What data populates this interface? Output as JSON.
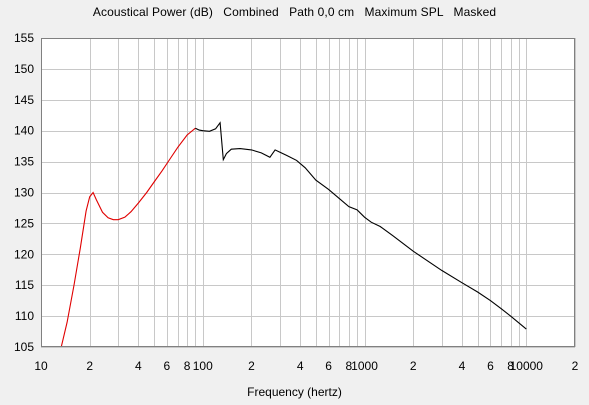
{
  "chart_data": {
    "type": "line",
    "title": "Acoustical Power (dB)   Combined   Path 0,0 cm   Maximum SPL   Masked",
    "xlabel": "Frequency (hertz)",
    "ylabel": "",
    "xscale": "log",
    "xlim": [
      10,
      20000
    ],
    "ylim": [
      105,
      155
    ],
    "yticks": [
      105,
      110,
      115,
      120,
      125,
      130,
      135,
      140,
      145,
      150,
      155
    ],
    "xtick_labels": [
      {
        "value": 10,
        "label": "10"
      },
      {
        "value": 20,
        "label": "2"
      },
      {
        "value": 40,
        "label": "4"
      },
      {
        "value": 60,
        "label": "6"
      },
      {
        "value": 80,
        "label": "8"
      },
      {
        "value": 100,
        "label": "100"
      },
      {
        "value": 200,
        "label": "2"
      },
      {
        "value": 400,
        "label": "4"
      },
      {
        "value": 600,
        "label": "6"
      },
      {
        "value": 800,
        "label": "8"
      },
      {
        "value": 1000,
        "label": "1000"
      },
      {
        "value": 2000,
        "label": "2"
      },
      {
        "value": 4000,
        "label": "4"
      },
      {
        "value": 6000,
        "label": "6"
      },
      {
        "value": 8000,
        "label": "8"
      },
      {
        "value": 10000,
        "label": "10000"
      },
      {
        "value": 20000,
        "label": "2"
      }
    ],
    "grid": true,
    "background": "#ffffff",
    "grid_color": "#c8c8c8",
    "series": [
      {
        "color": "#e00000",
        "x": [
          13.2,
          14.5,
          16,
          17.5,
          19,
          20,
          21,
          22,
          24,
          26,
          28,
          30,
          33,
          36,
          40,
          45,
          50,
          56,
          63,
          70,
          80,
          90
        ],
        "y": [
          104.5,
          109,
          115,
          121,
          127,
          129.3,
          130,
          128.8,
          126.8,
          125.9,
          125.6,
          125.6,
          126,
          126.9,
          128.3,
          130,
          131.7,
          133.5,
          135.5,
          137.3,
          139.3,
          140.4
        ]
      },
      {
        "color": "#000000",
        "x": [
          90,
          95,
          100,
          110,
          120,
          128,
          134,
          140,
          150,
          170,
          200,
          230,
          260,
          280,
          300,
          330,
          380,
          430,
          500,
          600,
          700,
          800,
          900,
          1000,
          1100,
          1250,
          1500,
          2000,
          3000,
          4000,
          5000,
          6000,
          7000,
          8000,
          9000,
          10000
        ],
        "y": [
          140.4,
          140.1,
          140.0,
          139.9,
          140.3,
          141.3,
          135.3,
          136.3,
          137.0,
          137.1,
          136.9,
          136.4,
          135.7,
          136.9,
          136.5,
          136.0,
          135.2,
          134.0,
          132.0,
          130.5,
          129.0,
          127.7,
          127.2,
          126.0,
          125.2,
          124.5,
          123.0,
          120.5,
          117.4,
          115.4,
          113.9,
          112.5,
          111.2,
          110.0,
          108.9,
          107.9
        ]
      }
    ]
  }
}
